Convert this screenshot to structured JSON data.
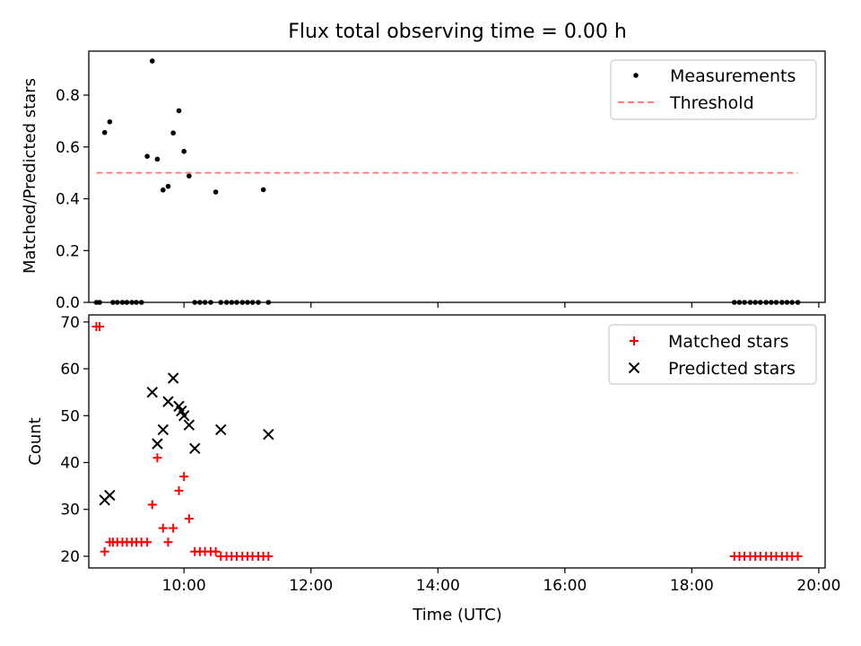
{
  "chart_data": [
    {
      "type": "scatter",
      "title": "Flux total observing time = 0.00 h",
      "xlabel": "",
      "ylabel": "Matched/Predicted stars",
      "xlim": [
        8.5,
        20.1
      ],
      "ylim": [
        0,
        0.97
      ],
      "yticks": [
        0.0,
        0.2,
        0.4,
        0.6,
        0.8
      ],
      "ytick_labels": [
        "0.0",
        "0.2",
        "0.4",
        "0.6",
        "0.8"
      ],
      "xticks": [
        10,
        12,
        14,
        16,
        18,
        20
      ],
      "show_xtick_labels": false,
      "legend_position": "top-right",
      "grid": false,
      "series": [
        {
          "name": "Measurements",
          "marker": "dot",
          "color": "#000000",
          "x": [
            8.62,
            8.67,
            8.75,
            8.83,
            8.88,
            8.95,
            9.03,
            9.1,
            9.18,
            9.25,
            9.33,
            9.42,
            9.5,
            9.58,
            9.67,
            9.75,
            9.83,
            9.92,
            10.0,
            10.08,
            10.17,
            10.25,
            10.33,
            10.42,
            10.5,
            10.58,
            10.67,
            10.75,
            10.83,
            10.92,
            11.0,
            11.08,
            11.17,
            11.25,
            11.33,
            18.67,
            18.75,
            18.83,
            18.92,
            19.0,
            19.08,
            19.17,
            19.25,
            19.33,
            19.42,
            19.5,
            19.58,
            19.67
          ],
          "y": [
            0.0,
            0.0,
            0.656,
            0.697,
            0.0,
            0.0,
            0.0,
            0.0,
            0.0,
            0.0,
            0.0,
            0.564,
            0.932,
            0.553,
            0.434,
            0.448,
            0.654,
            0.74,
            0.583,
            0.488,
            0.0,
            0.0,
            0.0,
            0.0,
            0.426,
            0.0,
            0.0,
            0.0,
            0.0,
            0.0,
            0.0,
            0.0,
            0.0,
            0.435,
            0.0,
            0.0,
            0.0,
            0.0,
            0.0,
            0.0,
            0.0,
            0.0,
            0.0,
            0.0,
            0.0,
            0.0,
            0.0,
            0.0
          ]
        },
        {
          "name": "Threshold",
          "marker": "dashed-line",
          "color": "#ff7f7f",
          "x": [
            8.62,
            19.67
          ],
          "y": [
            0.5,
            0.5
          ]
        }
      ]
    },
    {
      "type": "scatter",
      "title": "",
      "xlabel": "Time (UTC)",
      "ylabel": "Count",
      "xlim": [
        8.5,
        20.1
      ],
      "ylim": [
        17.5,
        71.5
      ],
      "yticks": [
        20,
        30,
        40,
        50,
        60,
        70
      ],
      "ytick_labels": [
        "20",
        "30",
        "40",
        "50",
        "60",
        "70"
      ],
      "xticks": [
        10,
        12,
        14,
        16,
        18,
        20
      ],
      "xtick_labels": [
        "10:00",
        "12:00",
        "14:00",
        "16:00",
        "18:00",
        "20:00"
      ],
      "show_xtick_labels": true,
      "legend_position": "top-right",
      "grid": false,
      "series": [
        {
          "name": "Matched stars",
          "marker": "plus",
          "color": "#ff0000",
          "x": [
            8.62,
            8.67,
            8.75,
            8.83,
            8.88,
            8.95,
            9.03,
            9.1,
            9.18,
            9.25,
            9.33,
            9.42,
            9.5,
            9.58,
            9.67,
            9.75,
            9.83,
            9.92,
            10.0,
            10.08,
            10.17,
            10.25,
            10.33,
            10.42,
            10.5,
            10.58,
            10.67,
            10.75,
            10.83,
            10.92,
            11.0,
            11.08,
            11.17,
            11.25,
            11.33,
            18.67,
            18.75,
            18.83,
            18.92,
            19.0,
            19.08,
            19.17,
            19.25,
            19.33,
            19.42,
            19.5,
            19.58,
            19.67
          ],
          "y": [
            69,
            69,
            21,
            23,
            23,
            23,
            23,
            23,
            23,
            23,
            23,
            23,
            31,
            41,
            26,
            23,
            26,
            34,
            37,
            28,
            21,
            21,
            21,
            21,
            21,
            20,
            20,
            20,
            20,
            20,
            20,
            20,
            20,
            20,
            20,
            20,
            20,
            20,
            20,
            20,
            20,
            20,
            20,
            20,
            20,
            20,
            20,
            20
          ]
        },
        {
          "name": "Predicted stars",
          "marker": "x",
          "color": "#000000",
          "x": [
            8.75,
            8.83,
            9.5,
            9.58,
            9.67,
            9.75,
            9.83,
            9.92,
            9.96,
            10.0,
            10.08,
            10.17,
            10.58,
            11.33
          ],
          "y": [
            32,
            33,
            55,
            44,
            47,
            53,
            58,
            52,
            51,
            50,
            48,
            43,
            47,
            46
          ]
        }
      ]
    }
  ]
}
